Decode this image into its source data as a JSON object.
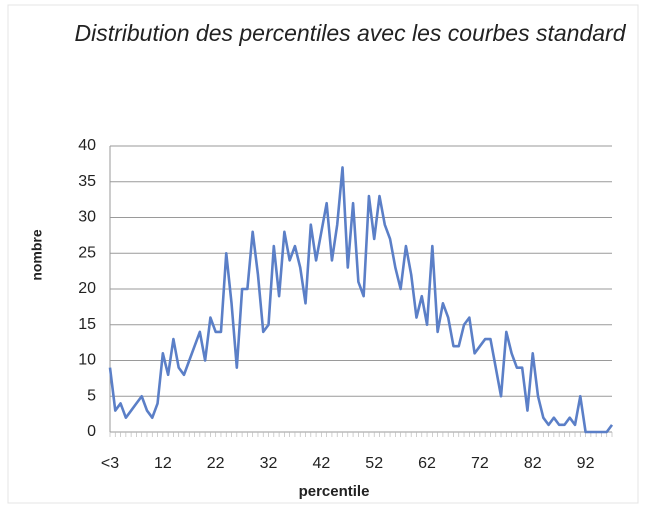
{
  "chart_data": {
    "type": "line",
    "title": "Distribution des percentiles avec les courbes standard",
    "x_label": "percentile",
    "y_label": "nombre",
    "categories": [
      "<3",
      null,
      null,
      null,
      null,
      null,
      null,
      null,
      null,
      null,
      "12",
      null,
      null,
      null,
      null,
      null,
      null,
      null,
      null,
      null,
      "22",
      null,
      null,
      null,
      null,
      null,
      null,
      null,
      null,
      null,
      "32",
      null,
      null,
      null,
      null,
      null,
      null,
      null,
      null,
      null,
      "42",
      null,
      null,
      null,
      null,
      null,
      null,
      null,
      null,
      null,
      "52",
      null,
      null,
      null,
      null,
      null,
      null,
      null,
      null,
      null,
      "62",
      null,
      null,
      null,
      null,
      null,
      null,
      null,
      null,
      null,
      "72",
      null,
      null,
      null,
      null,
      null,
      null,
      null,
      null,
      null,
      "82",
      null,
      null,
      null,
      null,
      null,
      null,
      null,
      null,
      null,
      "92",
      null,
      null,
      null,
      null,
      null
    ],
    "values": [
      9,
      3,
      4,
      2,
      3,
      4,
      5,
      3,
      2,
      4,
      11,
      8,
      13,
      9,
      8,
      10,
      12,
      14,
      10,
      16,
      14,
      14,
      25,
      18,
      9,
      20,
      20,
      28,
      22,
      14,
      15,
      26,
      19,
      28,
      24,
      26,
      23,
      18,
      29,
      24,
      28,
      32,
      24,
      29,
      37,
      23,
      32,
      21,
      19,
      33,
      27,
      33,
      29,
      27,
      23,
      20,
      26,
      22,
      16,
      19,
      15,
      26,
      14,
      18,
      16,
      12,
      12,
      15,
      16,
      11,
      12,
      13,
      13,
      9,
      5,
      14,
      11,
      9,
      9,
      3,
      11,
      5,
      2,
      1,
      2,
      1,
      1,
      2,
      1,
      5,
      0,
      0,
      0,
      0,
      0,
      1
    ],
    "color": "#5b7fc7",
    "ylim": [
      0,
      40
    ],
    "yticks": [
      0,
      5,
      10,
      15,
      20,
      25,
      30,
      35,
      40
    ],
    "grid": true
  }
}
